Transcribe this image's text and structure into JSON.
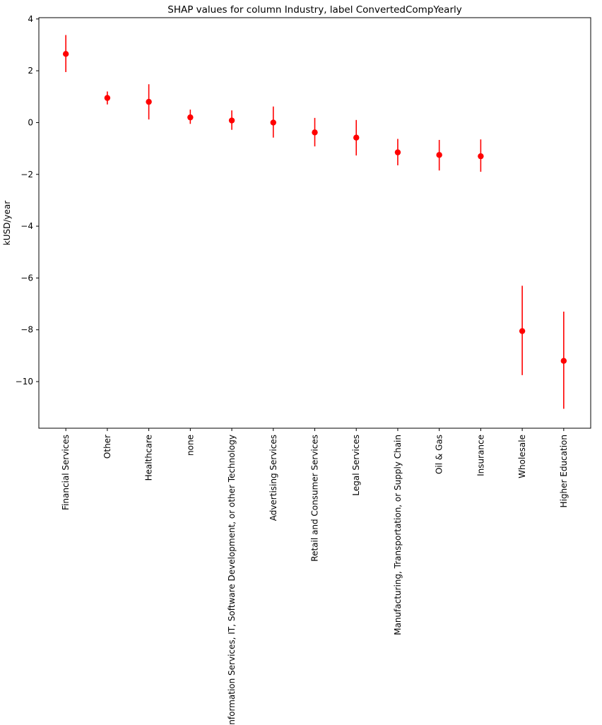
{
  "chart_data": {
    "type": "errorbar",
    "title": "SHAP values for column Industry, label ConvertedCompYearly",
    "xlabel": "",
    "ylabel": "kUSD/year",
    "ylim": [
      -11.8,
      4.05
    ],
    "yticks": [
      4,
      2,
      0,
      -2,
      -4,
      -6,
      -8,
      -10
    ],
    "ytick_labels": [
      "4",
      "2",
      "0",
      "−2",
      "−4",
      "−6",
      "−8",
      "−10"
    ],
    "color": "#ff0000",
    "categories": [
      "Financial Services",
      "Other",
      "Healthcare",
      "none",
      "Information Services, IT, Software Development, or other Technology",
      "Advertising Services",
      "Retail and Consumer Services",
      "Legal Services",
      "Manufacturing, Transportation, or Supply Chain",
      "Oil & Gas",
      "Insurance",
      "Wholesale",
      "Higher Education"
    ],
    "values": [
      2.65,
      0.95,
      0.8,
      0.2,
      0.08,
      0.0,
      -0.38,
      -0.58,
      -1.15,
      -1.25,
      -1.3,
      -8.05,
      -9.2
    ],
    "error_low": [
      1.95,
      0.7,
      0.12,
      -0.05,
      -0.28,
      -0.58,
      -0.92,
      -1.27,
      -1.65,
      -1.85,
      -1.9,
      -9.75,
      -11.05
    ],
    "error_high": [
      3.38,
      1.2,
      1.48,
      0.5,
      0.47,
      0.62,
      0.18,
      0.1,
      -0.63,
      -0.67,
      -0.65,
      -6.3,
      -7.3
    ]
  }
}
